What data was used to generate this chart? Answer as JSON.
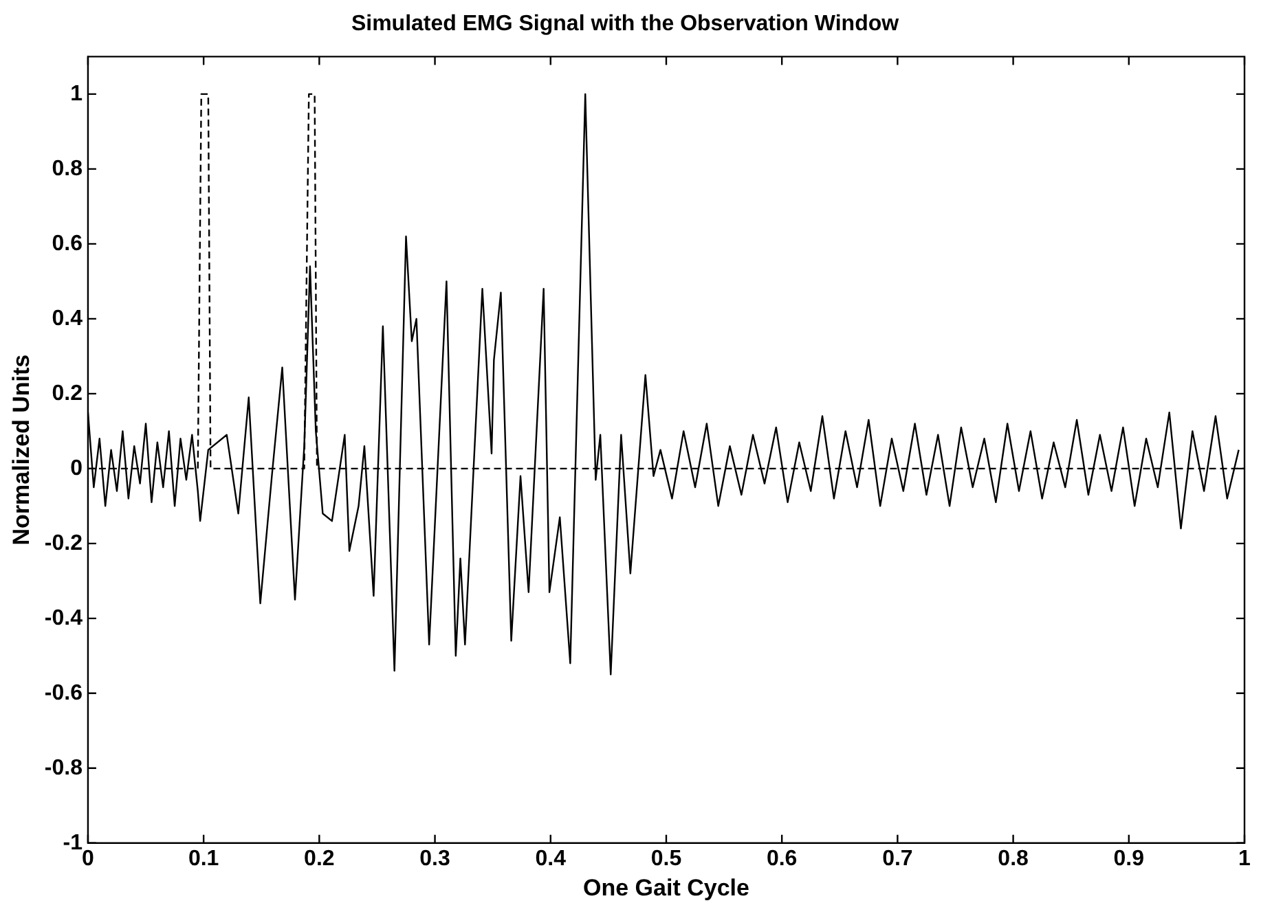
{
  "chart_data": {
    "type": "line",
    "title": "Simulated EMG Signal with the Observation Window",
    "xlabel": "One Gait Cycle",
    "ylabel": "Normalized Units",
    "xlim": [
      0,
      1
    ],
    "xticks": [
      0,
      0.1,
      0.2,
      0.3,
      0.4,
      0.5,
      0.6,
      0.7,
      0.8,
      0.9,
      1
    ],
    "ylim": [
      -1,
      1.1
    ],
    "yticks": [
      -1,
      -0.8,
      -0.6,
      -0.4,
      -0.2,
      0,
      0.2,
      0.4,
      0.6,
      0.8,
      1
    ],
    "grid": false,
    "legend": false,
    "marker": "none",
    "series": [
      {
        "color": "#000000",
        "line_style": "solid",
        "x": [
          0,
          0.005,
          0.01,
          0.015,
          0.02,
          0.025,
          0.03,
          0.035,
          0.04,
          0.045,
          0.05,
          0.055,
          0.06,
          0.065,
          0.07,
          0.075,
          0.08,
          0.085,
          0.09,
          0.095,
          0.097,
          0.104,
          0.12,
          0.13,
          0.139,
          0.149,
          0.159,
          0.168,
          0.179,
          0.187,
          0.192,
          0.197,
          0.203,
          0.211,
          0.222,
          0.226,
          0.234,
          0.239,
          0.247,
          0.255,
          0.265,
          0.275,
          0.28,
          0.284,
          0.295,
          0.31,
          0.318,
          0.322,
          0.326,
          0.341,
          0.349,
          0.351,
          0.357,
          0.366,
          0.374,
          0.381,
          0.394,
          0.399,
          0.408,
          0.417,
          0.43,
          0.439,
          0.443,
          0.452,
          0.461,
          0.469,
          0.482,
          0.489,
          0.495,
          0.505,
          0.515,
          0.525,
          0.535,
          0.545,
          0.555,
          0.565,
          0.575,
          0.585,
          0.595,
          0.605,
          0.615,
          0.625,
          0.635,
          0.645,
          0.655,
          0.665,
          0.675,
          0.685,
          0.695,
          0.705,
          0.715,
          0.725,
          0.735,
          0.745,
          0.755,
          0.765,
          0.775,
          0.785,
          0.795,
          0.805,
          0.815,
          0.825,
          0.835,
          0.845,
          0.855,
          0.865,
          0.875,
          0.885,
          0.895,
          0.905,
          0.915,
          0.925,
          0.935,
          0.945,
          0.955,
          0.965,
          0.975,
          0.985,
          0.995
        ],
        "values": [
          0.15,
          -0.05,
          0.08,
          -0.1,
          0.05,
          -0.06,
          0.1,
          -0.08,
          0.06,
          -0.04,
          0.12,
          -0.09,
          0.07,
          -0.05,
          0.1,
          -0.1,
          0.08,
          -0.03,
          0.09,
          -0.06,
          -0.14,
          0.05,
          0.09,
          -0.12,
          0.19,
          -0.36,
          -0.02,
          0.27,
          -0.35,
          0.06,
          0.54,
          0.1,
          -0.12,
          -0.14,
          0.09,
          -0.22,
          -0.1,
          0.06,
          -0.34,
          0.38,
          -0.54,
          0.62,
          0.34,
          0.4,
          -0.47,
          0.5,
          -0.5,
          -0.24,
          -0.47,
          0.48,
          0.04,
          0.29,
          0.47,
          -0.46,
          -0.02,
          -0.33,
          0.48,
          -0.33,
          -0.13,
          -0.52,
          1,
          -0.03,
          0.09,
          -0.55,
          0.09,
          -0.28,
          0.25,
          -0.02,
          0.05,
          -0.08,
          0.1,
          -0.05,
          0.12,
          -0.1,
          0.06,
          -0.07,
          0.09,
          -0.04,
          0.11,
          -0.09,
          0.07,
          -0.06,
          0.14,
          -0.08,
          0.1,
          -0.05,
          0.13,
          -0.1,
          0.08,
          -0.06,
          0.12,
          -0.07,
          0.09,
          -0.1,
          0.11,
          -0.05,
          0.08,
          -0.09,
          0.12,
          -0.06,
          0.1,
          -0.08,
          0.07,
          -0.05,
          0.13,
          -0.07,
          0.09,
          -0.06,
          0.11,
          -0.1,
          0.08,
          -0.05,
          0.15,
          -0.16,
          0.1,
          -0.06,
          0.14,
          -0.08,
          0.05
        ]
      },
      {
        "color": "#000000",
        "line_style": "dashed",
        "x": [
          0,
          0.095,
          0.098,
          0.104,
          0.106,
          0.187,
          0.191,
          0.196,
          0.198,
          1
        ],
        "values": [
          0,
          0,
          1,
          1,
          0,
          0,
          1,
          1,
          0,
          0
        ]
      }
    ]
  }
}
